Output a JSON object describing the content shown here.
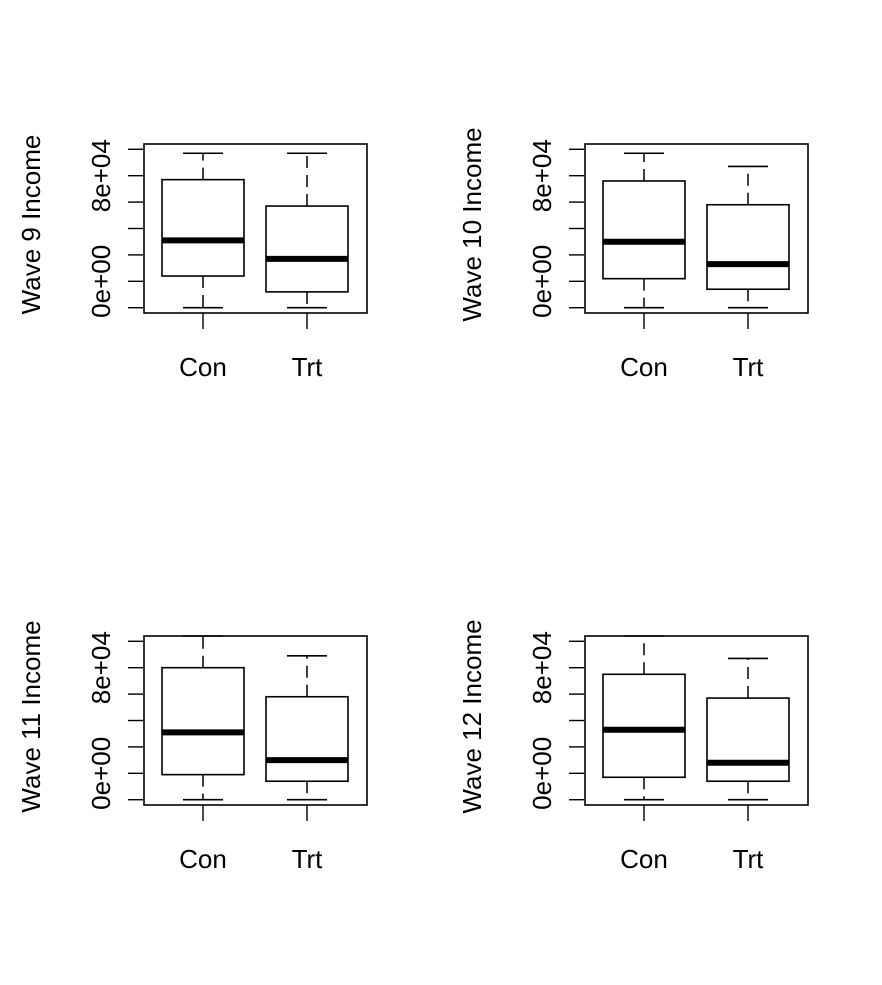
{
  "chart_data": [
    {
      "type": "boxplot",
      "ylabel": "Wave 9 Income",
      "categories": [
        "Con",
        "Trt"
      ],
      "y_tick_labels": [
        "0e+00",
        "8e+04"
      ],
      "y_ticks": [
        -20000,
        0,
        20000,
        40000,
        60000,
        80000,
        100000
      ],
      "ylim": [
        -24000,
        104000
      ],
      "boxes": [
        {
          "name": "Con",
          "whisker_low": -20000,
          "q1": 4000,
          "median": 31000,
          "q3": 77000,
          "whisker_high": 97000
        },
        {
          "name": "Trt",
          "whisker_low": -20000,
          "q1": -8000,
          "median": 17000,
          "q3": 57000,
          "whisker_high": 97000
        }
      ]
    },
    {
      "type": "boxplot",
      "ylabel": "Wave 10 Income",
      "categories": [
        "Con",
        "Trt"
      ],
      "y_tick_labels": [
        "0e+00",
        "8e+04"
      ],
      "y_ticks": [
        -20000,
        0,
        20000,
        40000,
        60000,
        80000,
        100000
      ],
      "ylim": [
        -24000,
        104000
      ],
      "boxes": [
        {
          "name": "Con",
          "whisker_low": -20000,
          "q1": 2000,
          "median": 30000,
          "q3": 76000,
          "whisker_high": 97000
        },
        {
          "name": "Trt",
          "whisker_low": -20000,
          "q1": -6000,
          "median": 13000,
          "q3": 58000,
          "whisker_high": 87000
        }
      ]
    },
    {
      "type": "boxplot",
      "ylabel": "Wave 11 Income",
      "categories": [
        "Con",
        "Trt"
      ],
      "y_tick_labels": [
        "0e+00",
        "8e+04"
      ],
      "y_ticks": [
        -20000,
        0,
        20000,
        40000,
        60000,
        80000,
        100000
      ],
      "ylim": [
        -24000,
        104000
      ],
      "boxes": [
        {
          "name": "Con",
          "whisker_low": -20000,
          "q1": -1000,
          "median": 31000,
          "q3": 80000,
          "whisker_high": 104000
        },
        {
          "name": "Trt",
          "whisker_low": -20000,
          "q1": -6000,
          "median": 10000,
          "q3": 58000,
          "whisker_high": 89000
        }
      ]
    },
    {
      "type": "boxplot",
      "ylabel": "Wave 12 Income",
      "categories": [
        "Con",
        "Trt"
      ],
      "y_tick_labels": [
        "0e+00",
        "8e+04"
      ],
      "y_ticks": [
        -20000,
        0,
        20000,
        40000,
        60000,
        80000,
        100000
      ],
      "ylim": [
        -24000,
        104000
      ],
      "boxes": [
        {
          "name": "Con",
          "whisker_low": -20000,
          "q1": -3000,
          "median": 33000,
          "q3": 75000,
          "whisker_high": 104000
        },
        {
          "name": "Trt",
          "whisker_low": -20000,
          "q1": -6000,
          "median": 8000,
          "q3": 57000,
          "whisker_high": 87000
        }
      ]
    }
  ]
}
